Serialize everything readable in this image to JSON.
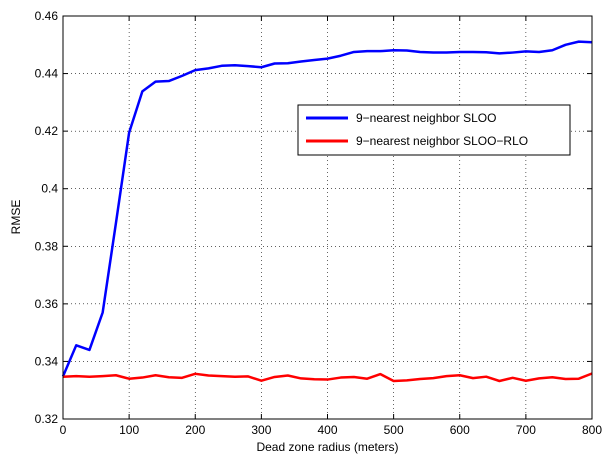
{
  "chart_data": {
    "type": "line",
    "title": "",
    "xlabel": "Dead zone radius (meters)",
    "ylabel": "RMSE",
    "xlim": [
      0,
      800
    ],
    "ylim": [
      0.32,
      0.46
    ],
    "xticks": [
      0,
      100,
      200,
      300,
      400,
      500,
      600,
      700,
      800
    ],
    "yticks": [
      0.32,
      0.34,
      0.36,
      0.38,
      0.4,
      0.42,
      0.44,
      0.46
    ],
    "xtick_labels": [
      "0",
      "100",
      "200",
      "300",
      "400",
      "500",
      "600",
      "700",
      "800"
    ],
    "ytick_labels": [
      "0.32",
      "0.34",
      "0.36",
      "0.38",
      "0.4",
      "0.42",
      "0.44",
      "0.46"
    ],
    "grid": true,
    "legend_position": "upper-right",
    "x": [
      0,
      20,
      40,
      60,
      80,
      100,
      120,
      140,
      160,
      180,
      200,
      220,
      240,
      260,
      280,
      300,
      320,
      340,
      360,
      380,
      400,
      420,
      440,
      460,
      480,
      500,
      520,
      540,
      560,
      580,
      600,
      620,
      640,
      660,
      680,
      700,
      720,
      740,
      760,
      780,
      800
    ],
    "series": [
      {
        "name": "9−nearest neighbor SLOO",
        "color": "#0000ff",
        "values": [
          0.3348,
          0.3456,
          0.344,
          0.357,
          0.388,
          0.4195,
          0.4338,
          0.4372,
          0.4374,
          0.4392,
          0.4412,
          0.4418,
          0.4427,
          0.4429,
          0.4426,
          0.4422,
          0.4435,
          0.4436,
          0.4442,
          0.4447,
          0.4452,
          0.4462,
          0.4475,
          0.4478,
          0.4478,
          0.4481,
          0.448,
          0.4475,
          0.4473,
          0.4473,
          0.4475,
          0.4475,
          0.4474,
          0.447,
          0.4473,
          0.4477,
          0.4475,
          0.4481,
          0.45,
          0.4511,
          0.4509
        ]
      },
      {
        "name": "9−nearest neighbor SLOO−RLO",
        "color": "#ff0000",
        "values": [
          0.3347,
          0.3349,
          0.3347,
          0.3349,
          0.3352,
          0.334,
          0.3344,
          0.3352,
          0.3345,
          0.3343,
          0.3357,
          0.3351,
          0.3349,
          0.3347,
          0.3348,
          0.3333,
          0.3346,
          0.3351,
          0.3341,
          0.3338,
          0.3337,
          0.3344,
          0.3346,
          0.334,
          0.3356,
          0.3332,
          0.3334,
          0.3339,
          0.3342,
          0.3349,
          0.3352,
          0.3342,
          0.3347,
          0.3332,
          0.3343,
          0.3333,
          0.3341,
          0.3345,
          0.3339,
          0.334,
          0.3358
        ]
      }
    ]
  }
}
